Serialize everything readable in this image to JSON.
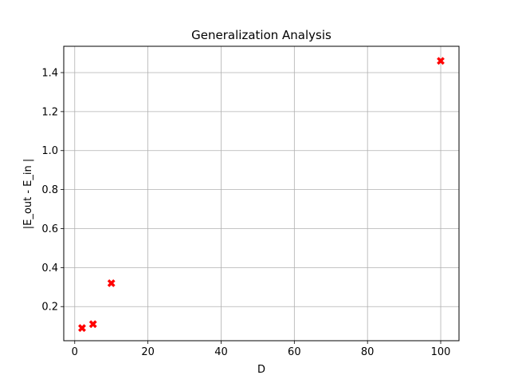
{
  "chart_data": {
    "type": "scatter",
    "title": "Generalization Analysis",
    "xlabel": "D",
    "ylabel": "|E_out - E_in |",
    "xlim": [
      -3,
      105
    ],
    "ylim": [
      0.025,
      1.535
    ],
    "xticks": [
      0,
      20,
      40,
      60,
      80,
      100
    ],
    "yticks": [
      0.2,
      0.4,
      0.6,
      0.8,
      1.0,
      1.2,
      1.4
    ],
    "xtick_labels": [
      "0",
      "20",
      "40",
      "60",
      "80",
      "100"
    ],
    "ytick_labels": [
      "0.2",
      "0.4",
      "0.6",
      "0.8",
      "1.0",
      "1.2",
      "1.4"
    ],
    "grid": true,
    "marker": "X",
    "marker_color": "#ff0000",
    "series": [
      {
        "x": [
          2,
          5,
          10,
          100
        ],
        "y": [
          0.09,
          0.11,
          0.32,
          1.46
        ]
      }
    ]
  }
}
